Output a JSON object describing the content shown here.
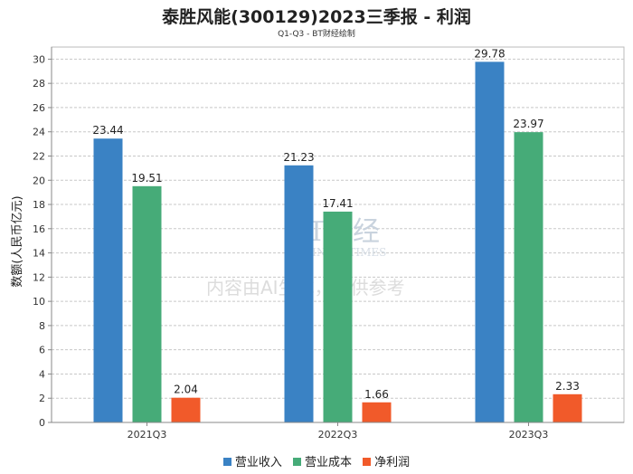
{
  "chart_data": {
    "type": "bar",
    "title": "泰胜风能(300129)2023三季报 - 利润",
    "subtitle": "Q1-Q3 - BT财经绘制",
    "xlabel": "",
    "ylabel": "数额(人民币亿元)",
    "ylim": [
      0,
      31
    ],
    "yticks": [
      0,
      2,
      4,
      6,
      8,
      10,
      12,
      14,
      16,
      18,
      20,
      22,
      24,
      26,
      28,
      30
    ],
    "categories": [
      "2021Q3",
      "2022Q3",
      "2023Q3"
    ],
    "series": [
      {
        "name": "营业收入",
        "color": "#3a82c4",
        "values": [
          23.44,
          21.23,
          29.78
        ]
      },
      {
        "name": "营业成本",
        "color": "#46ab78",
        "values": [
          19.51,
          17.41,
          23.97
        ]
      },
      {
        "name": "净利润",
        "color": "#f15a2a",
        "values": [
          2.04,
          1.66,
          2.33
        ]
      }
    ],
    "grid": true,
    "legend": "bottom"
  },
  "watermark": {
    "brand": "BT财经",
    "brand_en": "BUSINESSTIMES",
    "notice": "内容由AI生成，仅供参考"
  }
}
